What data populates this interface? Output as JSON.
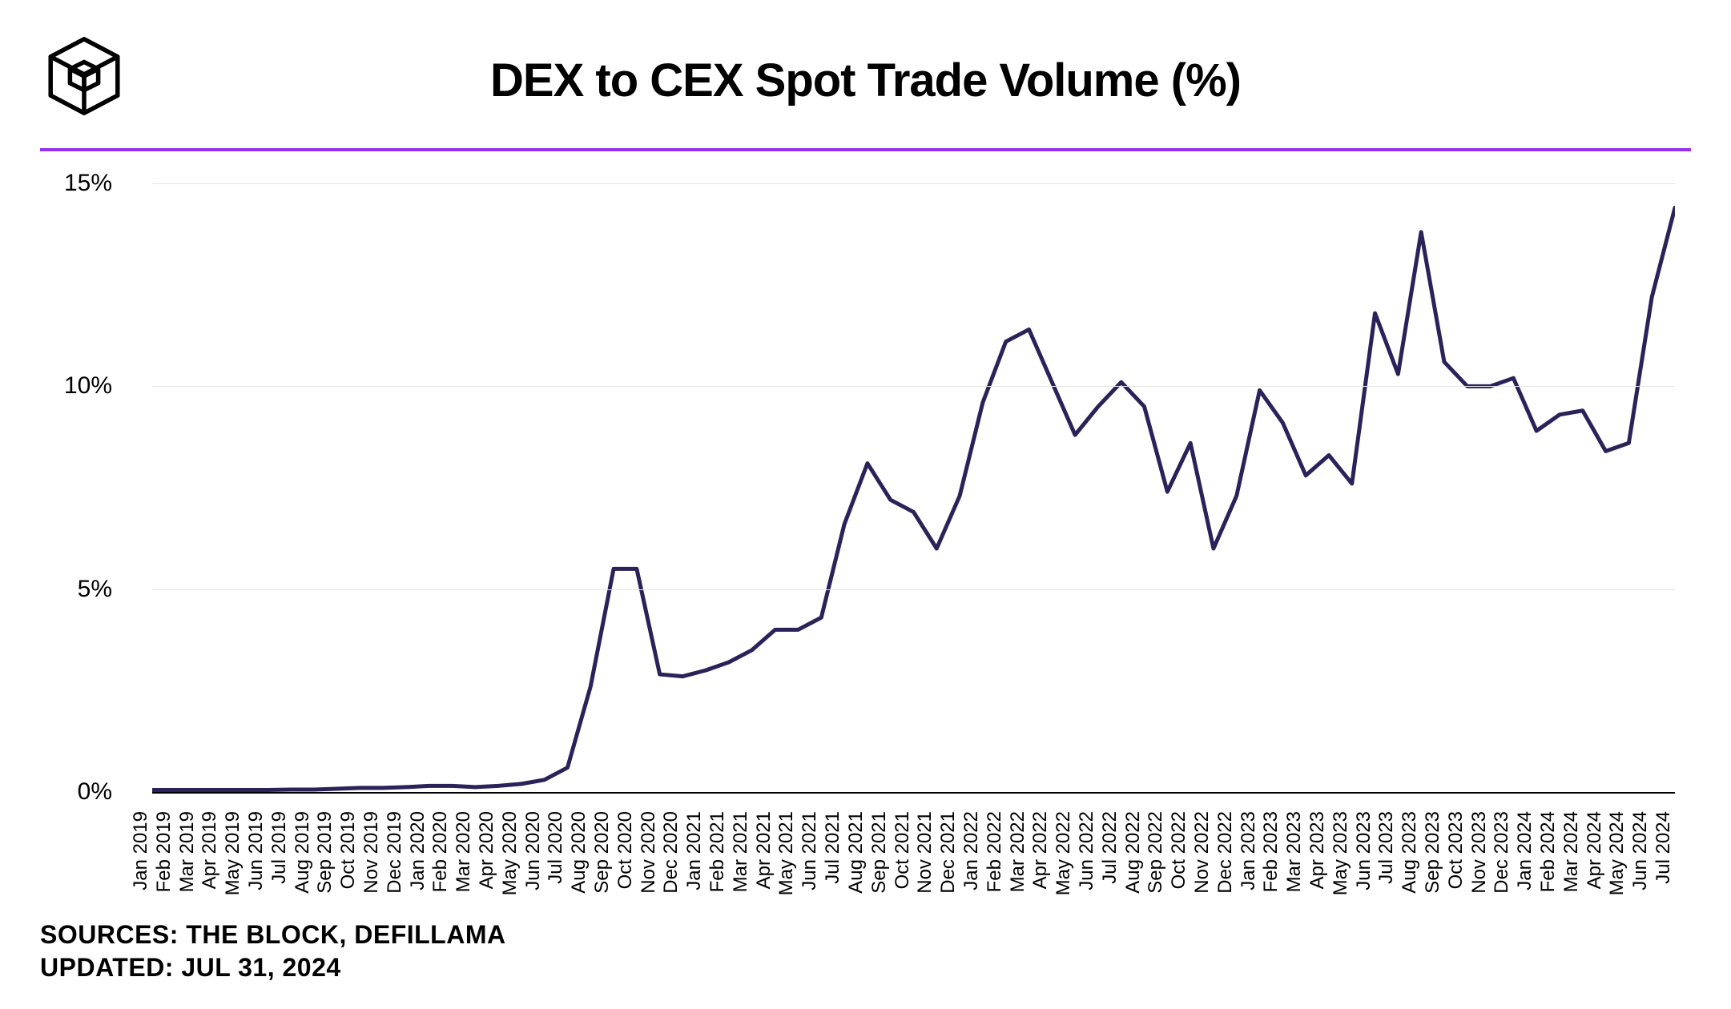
{
  "chart": {
    "type": "line",
    "title": "DEX to CEX Spot Trade Volume (%)",
    "title_fontsize": 58,
    "title_color": "#000000",
    "accent_line_color": "#9333ea",
    "line_color": "#2a2258",
    "line_width": 5,
    "background_color": "#ffffff",
    "grid_color": "#e5e5e5",
    "axis_color": "#000000",
    "ylim": [
      0,
      15
    ],
    "yticks": [
      0,
      5,
      10,
      15
    ],
    "ytick_suffix": "%",
    "ytick_fontsize": 30,
    "xtick_fontsize": 24,
    "x_labels": [
      "Jan 2019",
      "Feb 2019",
      "Mar 2019",
      "Apr 2019",
      "May 2019",
      "Jun 2019",
      "Jul 2019",
      "Aug 2019",
      "Sep 2019",
      "Oct 2019",
      "Nov 2019",
      "Dec 2019",
      "Jan 2020",
      "Feb 2020",
      "Mar 2020",
      "Apr 2020",
      "May 2020",
      "Jun 2020",
      "Jul 2020",
      "Aug 2020",
      "Sep 2020",
      "Oct 2020",
      "Nov 2020",
      "Dec 2020",
      "Jan 2021",
      "Feb 2021",
      "Mar 2021",
      "Apr 2021",
      "May 2021",
      "Jun 2021",
      "Jul 2021",
      "Aug 2021",
      "Sep 2021",
      "Oct 2021",
      "Nov 2021",
      "Dec 2021",
      "Jan 2022",
      "Feb 2022",
      "Mar 2022",
      "Apr 2022",
      "May 2022",
      "Jun 2022",
      "Jul 2022",
      "Aug 2022",
      "Sep 2022",
      "Oct 2022",
      "Nov 2022",
      "Dec 2022",
      "Jan 2023",
      "Feb 2023",
      "Mar 2023",
      "Apr 2023",
      "May 2023",
      "Jun 2023",
      "Jul 2023",
      "Aug 2023",
      "Sep 2023",
      "Oct 2023",
      "Nov 2023",
      "Dec 2023",
      "Jan 2024",
      "Feb 2024",
      "Mar 2024",
      "Apr 2024",
      "May 2024",
      "Jun 2024",
      "Jul 2024"
    ],
    "values": [
      0.05,
      0.05,
      0.05,
      0.05,
      0.05,
      0.05,
      0.06,
      0.06,
      0.08,
      0.1,
      0.1,
      0.12,
      0.15,
      0.15,
      0.12,
      0.15,
      0.2,
      0.3,
      0.6,
      2.6,
      5.5,
      5.5,
      2.9,
      2.85,
      3.0,
      3.2,
      3.5,
      4.0,
      4.0,
      4.3,
      6.6,
      8.1,
      7.2,
      6.9,
      6.0,
      7.3,
      9.6,
      11.1,
      11.4,
      10.1,
      8.8,
      9.5,
      10.1,
      9.5,
      7.4,
      8.6,
      6.0,
      7.3,
      9.9,
      9.1,
      7.8,
      8.3,
      7.6,
      11.8,
      10.3,
      13.8,
      10.6,
      10.0,
      10.0,
      10.2,
      8.9,
      9.3,
      9.4,
      8.4,
      8.6,
      12.2,
      14.4
    ]
  },
  "footer": {
    "sources": "SOURCES: THE BLOCK, DEFILLAMA",
    "updated": "UPDATED: JUL 31, 2024"
  },
  "logo": {
    "stroke": "#000000",
    "stroke_width": 5
  }
}
